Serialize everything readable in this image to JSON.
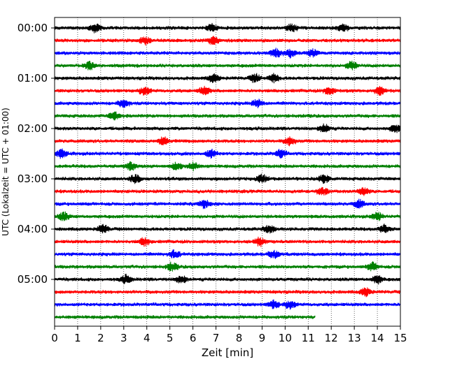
{
  "chart_data": {
    "type": "line",
    "title": "",
    "xlabel": "Zeit  [min]",
    "ylabel": "UTC (Lokalzeit = UTC + 01:00)",
    "xlim": [
      0,
      15
    ],
    "x_ticks": [
      "0",
      "1",
      "2",
      "3",
      "4",
      "5",
      "6",
      "7",
      "8",
      "9",
      "10",
      "11",
      "12",
      "13",
      "14",
      "15"
    ],
    "y_tick_labels": [
      {
        "label": "00:00",
        "row": 0
      },
      {
        "label": "01:00",
        "row": 4
      },
      {
        "label": "02:00",
        "row": 8
      },
      {
        "label": "03:00",
        "row": 12
      },
      {
        "label": "04:00",
        "row": 16
      },
      {
        "label": "05:00",
        "row": 20
      }
    ],
    "grid": "vertical dotted lines at each minute",
    "row_interval_minutes": 15,
    "row_count": 24,
    "last_row_end_minute": 11.3,
    "trace_colors": [
      "#000000",
      "#ff0000",
      "#0000ff",
      "#008000"
    ],
    "event_rows_note": "notable amplitude bursts per row in minutes",
    "events": [
      {
        "row": 0,
        "t": [
          1.75,
          6.8,
          10.3,
          12.5
        ]
      },
      {
        "row": 1,
        "t": [
          3.9,
          6.9
        ]
      },
      {
        "row": 2,
        "t": [
          9.6,
          10.2,
          11.2
        ]
      },
      {
        "row": 3,
        "t": [
          1.5,
          12.9
        ]
      },
      {
        "row": 4,
        "t": [
          6.9,
          8.7,
          9.5
        ]
      },
      {
        "row": 5,
        "t": [
          3.9,
          6.5,
          11.9,
          14.1
        ]
      },
      {
        "row": 6,
        "t": [
          3.0,
          8.8
        ]
      },
      {
        "row": 7,
        "t": [
          2.6
        ]
      },
      {
        "row": 8,
        "t": [
          11.7,
          14.8
        ]
      },
      {
        "row": 9,
        "t": [
          4.7,
          10.2
        ]
      },
      {
        "row": 10,
        "t": [
          0.3,
          6.8,
          9.8
        ]
      },
      {
        "row": 11,
        "t": [
          3.3,
          5.3,
          6.0
        ]
      },
      {
        "row": 12,
        "t": [
          3.5,
          9.0,
          11.7
        ]
      },
      {
        "row": 13,
        "t": [
          11.6,
          13.4
        ]
      },
      {
        "row": 14,
        "t": [
          6.5,
          13.2
        ]
      },
      {
        "row": 15,
        "t": [
          0.4,
          14.0
        ]
      },
      {
        "row": 16,
        "t": [
          2.1,
          9.3,
          14.3
        ]
      },
      {
        "row": 17,
        "t": [
          3.9,
          8.9
        ]
      },
      {
        "row": 18,
        "t": [
          5.2,
          9.5
        ]
      },
      {
        "row": 19,
        "t": [
          5.1,
          13.8
        ]
      },
      {
        "row": 20,
        "t": [
          3.1,
          5.5,
          14.0
        ]
      },
      {
        "row": 21,
        "t": [
          13.5
        ]
      },
      {
        "row": 22,
        "t": [
          9.5,
          10.2
        ]
      },
      {
        "row": 23,
        "t": []
      }
    ]
  }
}
